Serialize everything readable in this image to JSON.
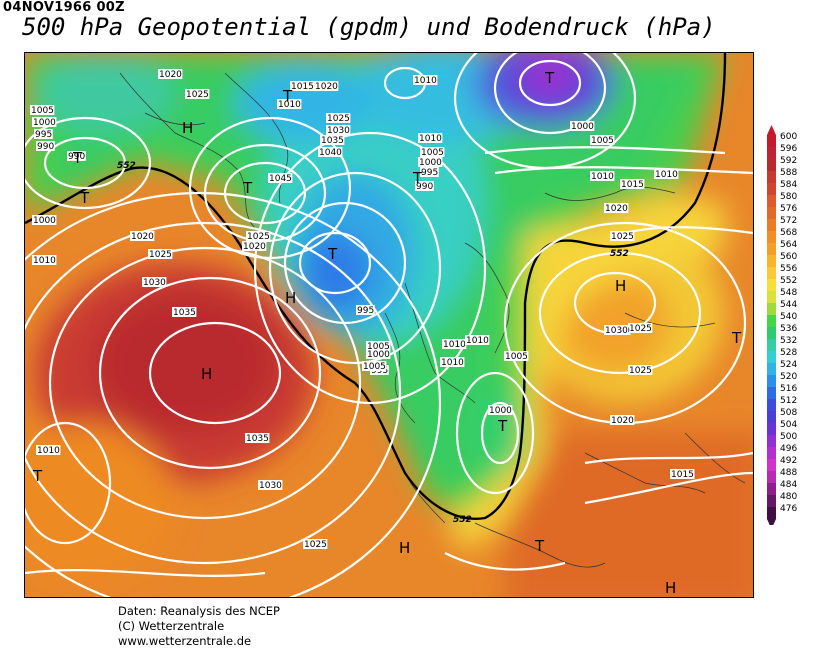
{
  "header": {
    "date": "04NOV1966 00Z",
    "title": "500 hPa Geopotential (gpdm) und Bodendruck (hPa)"
  },
  "legend": {
    "levels": [
      "600",
      "596",
      "592",
      "588",
      "584",
      "580",
      "576",
      "572",
      "568",
      "564",
      "560",
      "556",
      "552",
      "548",
      "544",
      "540",
      "536",
      "532",
      "528",
      "524",
      "520",
      "516",
      "512",
      "508",
      "504",
      "500",
      "496",
      "492",
      "488",
      "484",
      "480",
      "476"
    ],
    "colors": [
      "#c41a2a",
      "#bf2330",
      "#b72a2e",
      "#c63a32",
      "#d1452f",
      "#dc5a2c",
      "#e26a28",
      "#e97c25",
      "#ef8f25",
      "#f3a02a",
      "#f7b52e",
      "#f9c93a",
      "#f5df3b",
      "#d7e23c",
      "#9fdb3c",
      "#45d44a",
      "#2fcb72",
      "#35cea4",
      "#36cfd0",
      "#32b3e6",
      "#2c90ea",
      "#2f6ce4",
      "#3b4de0",
      "#4e3bdb",
      "#6a33d6",
      "#9031d2",
      "#b52fce",
      "#d233c8",
      "#b82ab0",
      "#8c1f8a",
      "#641766",
      "#3e0f40"
    ]
  },
  "map": {
    "isobar_labels": [
      "1020",
      "1025",
      "1015",
      "1020",
      "1010",
      "1010",
      "1005",
      "1000",
      "995",
      "990",
      "1025",
      "1030",
      "1035",
      "1040",
      "1045",
      "1010",
      "1005",
      "1000",
      "995",
      "990",
      "1010",
      "990",
      "995",
      "1005",
      "1010",
      "1015",
      "1020",
      "1025",
      "1000",
      "1020",
      "1025",
      "1030",
      "1035",
      "1025",
      "1020",
      "1025",
      "1030",
      "1035",
      "1030",
      "1025",
      "995",
      "1000",
      "1005",
      "1010",
      "1010",
      "1005",
      "1000",
      "1015",
      "1030",
      "1025",
      "1020",
      "1010",
      "1010",
      "1005",
      "1000",
      "1015",
      "1010"
    ],
    "centers": [
      "T",
      "H",
      "T",
      "T",
      "T",
      "T",
      "T",
      "T",
      "H",
      "H",
      "T",
      "T",
      "H",
      "T",
      "H",
      "T",
      "H"
    ],
    "contour_label": "552"
  },
  "credits": {
    "line1": "Daten: Reanalysis des NCEP",
    "line2": "(C) Wetterzentrale",
    "line3": "www.wetterzentrale.de"
  }
}
